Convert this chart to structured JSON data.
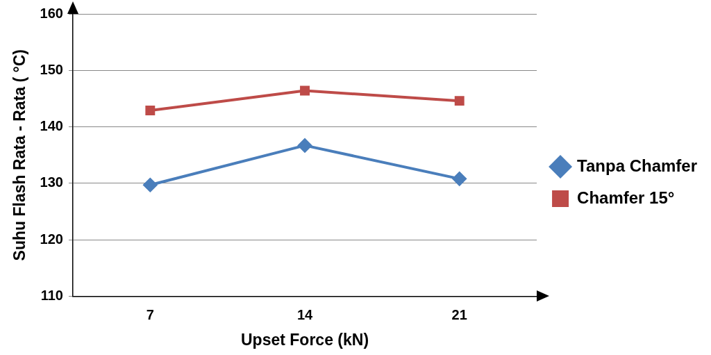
{
  "chart_data": {
    "type": "line",
    "xlabel": "Upset Force (kN)",
    "ylabel": "Suhu Flash Rata - Rata ( °C)",
    "categories": [
      "7",
      "14",
      "21"
    ],
    "series": [
      {
        "name": "Tanpa Chamfer",
        "color": "#4a7ebb",
        "marker": "diamond",
        "values": [
          129.7,
          136.7,
          130.8
        ]
      },
      {
        "name": "Chamfer 15°",
        "color": "#be4b48",
        "marker": "square",
        "values": [
          142.9,
          146.4,
          144.6
        ]
      }
    ],
    "ylim": [
      110,
      160
    ],
    "yticks": [
      110,
      120,
      130,
      140,
      150,
      160
    ],
    "grid": "y",
    "legend": "right",
    "line_style": "solid"
  }
}
